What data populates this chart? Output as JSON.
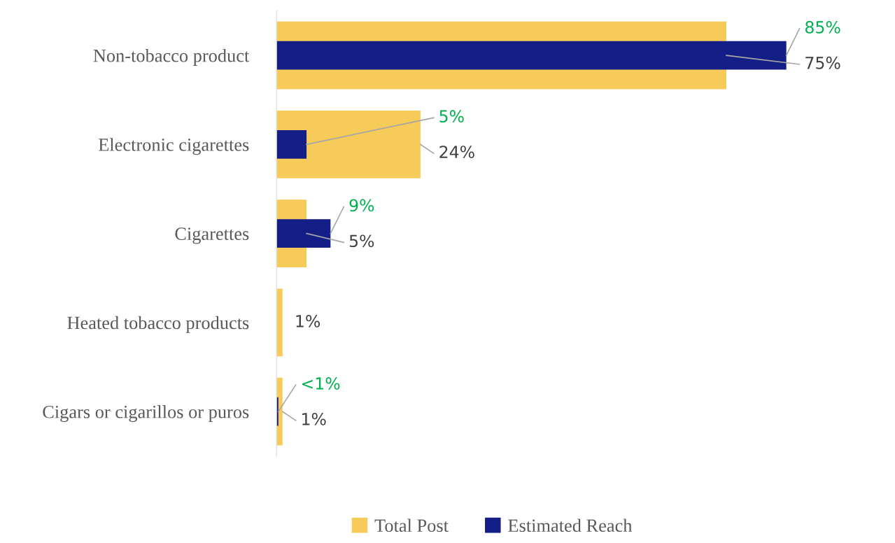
{
  "chart_data": {
    "type": "bar",
    "orientation": "horizontal",
    "categories": [
      "Non-tobacco product",
      "Electronic cigarettes",
      "Cigarettes",
      "Heated tobacco products",
      "Cigars or cigarillos or puros"
    ],
    "series": [
      {
        "name": "Total Post",
        "color": "#f7cb5a",
        "values": [
          75,
          24,
          5,
          1,
          1
        ],
        "value_labels": [
          "75%",
          "24%",
          "5%",
          "1%",
          "1%"
        ]
      },
      {
        "name": "Estimated Reach",
        "color": "#131e86",
        "values": [
          85,
          5,
          9,
          null,
          0.3
        ],
        "value_labels": [
          "85%",
          "5%",
          "9%",
          null,
          "<1%"
        ]
      }
    ],
    "legend": "bottom",
    "grid": false
  }
}
